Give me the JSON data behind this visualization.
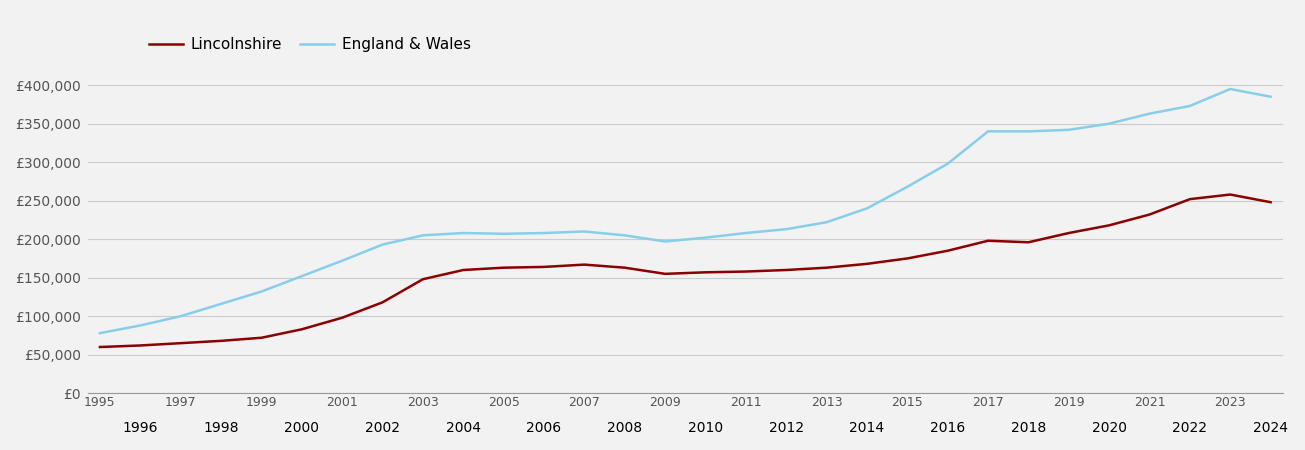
{
  "lincolnshire": {
    "years": [
      1995,
      1996,
      1997,
      1998,
      1999,
      2000,
      2001,
      2002,
      2003,
      2004,
      2005,
      2006,
      2007,
      2008,
      2009,
      2010,
      2011,
      2012,
      2013,
      2014,
      2015,
      2016,
      2017,
      2018,
      2019,
      2020,
      2021,
      2022,
      2023,
      2024
    ],
    "values": [
      60000,
      62000,
      65000,
      68000,
      72000,
      83000,
      98000,
      118000,
      148000,
      160000,
      163000,
      164000,
      167000,
      163000,
      155000,
      157000,
      158000,
      160000,
      163000,
      168000,
      175000,
      185000,
      198000,
      196000,
      208000,
      218000,
      232000,
      252000,
      258000,
      248000
    ]
  },
  "england_wales": {
    "years": [
      1995,
      1996,
      1997,
      1998,
      1999,
      2000,
      2001,
      2002,
      2003,
      2004,
      2005,
      2006,
      2007,
      2008,
      2009,
      2010,
      2011,
      2012,
      2013,
      2014,
      2015,
      2016,
      2017,
      2018,
      2019,
      2020,
      2021,
      2022,
      2023,
      2024
    ],
    "values": [
      78000,
      88000,
      100000,
      116000,
      132000,
      152000,
      172000,
      193000,
      205000,
      208000,
      207000,
      208000,
      210000,
      205000,
      197000,
      202000,
      208000,
      213000,
      222000,
      240000,
      268000,
      298000,
      340000,
      340000,
      342000,
      350000,
      363000,
      373000,
      395000,
      385000
    ]
  },
  "lincolnshire_color": "#8B0000",
  "england_wales_color": "#87CEEB",
  "background_color": "#f2f2f2",
  "grid_color": "#cccccc",
  "legend_labels": [
    "Lincolnshire",
    "England & Wales"
  ],
  "ytick_labels": [
    "£0",
    "£50,000",
    "£100,000",
    "£150,000",
    "£200,000",
    "£250,000",
    "£300,000",
    "£350,000",
    "£400,000"
  ],
  "ytick_values": [
    0,
    50000,
    100000,
    150000,
    200000,
    250000,
    300000,
    350000,
    400000
  ],
  "ylim": [
    0,
    425000
  ],
  "xlim_min": 1994.7,
  "xlim_max": 2024.3,
  "line_width": 1.8,
  "tick_fontsize": 9,
  "ytick_fontsize": 10,
  "legend_fontsize": 11,
  "tick_color": "#555555"
}
